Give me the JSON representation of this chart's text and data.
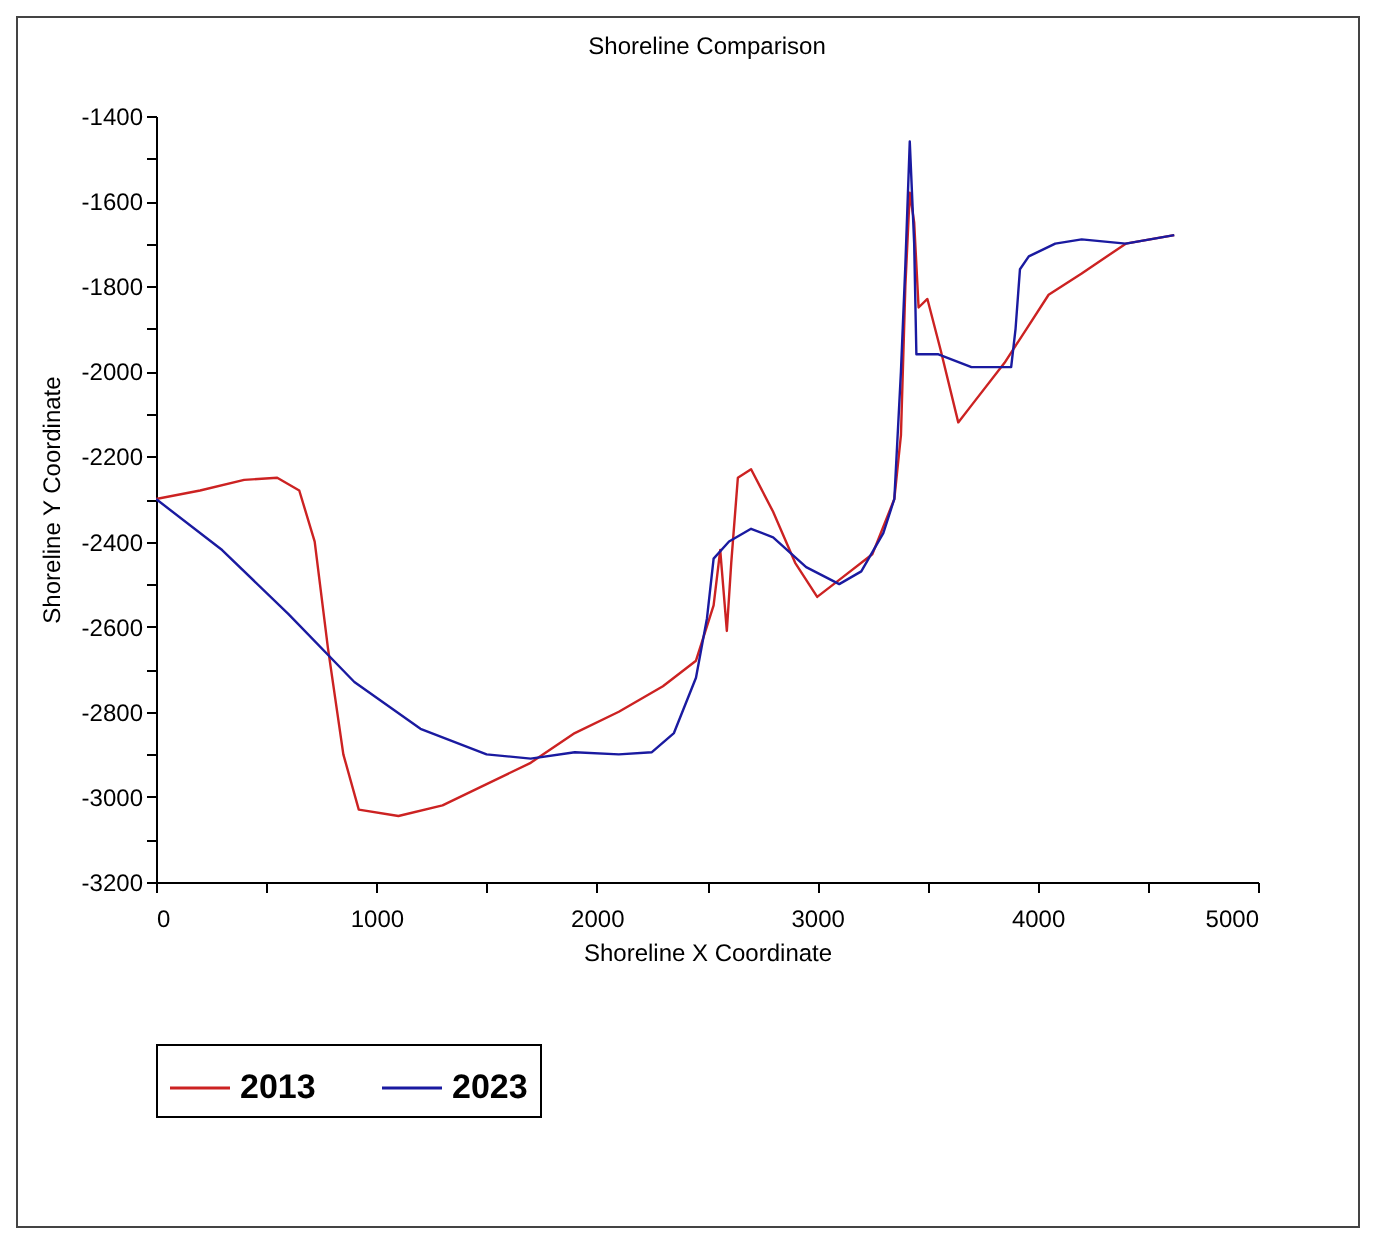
{
  "chart_data": {
    "type": "line",
    "title": "Shoreline Comparison",
    "xlabel": "Shoreline X Coordinate",
    "ylabel": "Shoreline Y Coordinate",
    "xlim": [
      0,
      5000
    ],
    "ylim": [
      -3200,
      -1400
    ],
    "xticks": [
      0,
      {
        "value": 500,
        "label": null
      },
      1000,
      {
        "value": 1500,
        "label": null
      },
      2000,
      {
        "value": 2500,
        "label": null
      },
      3000,
      {
        "value": 3500,
        "label": null
      },
      4000,
      {
        "value": 4500,
        "label": null
      },
      5000
    ],
    "yticks": [
      -3200,
      {
        "value": -3100,
        "label": null
      },
      -3000,
      {
        "value": -2900,
        "label": null
      },
      -2800,
      {
        "value": -2700,
        "label": null
      },
      -2600,
      {
        "value": -2500,
        "label": null
      },
      -2400,
      {
        "value": -2300,
        "label": null
      },
      -2200,
      {
        "value": -2100,
        "label": null
      },
      -2000,
      {
        "value": -1900,
        "label": null
      },
      -1800,
      {
        "value": -1700,
        "label": null
      },
      -1600,
      {
        "value": -1500,
        "label": null
      },
      -1400
    ],
    "grid": false,
    "legend": "bottom",
    "marker": "none",
    "line_style": "solid",
    "series": [
      {
        "name": "2013",
        "color": "#cc2222",
        "x": [
          0,
          200,
          400,
          550,
          650,
          720,
          780,
          850,
          920,
          1100,
          1300,
          1500,
          1700,
          1900,
          2100,
          2300,
          2450,
          2530,
          2560,
          2590,
          2610,
          2640,
          2700,
          2800,
          2900,
          3000,
          3100,
          3250,
          3350,
          3380,
          3400,
          3420,
          3440,
          3460,
          3500,
          3560,
          3640,
          3700,
          3850,
          3950,
          4050,
          4200,
          4400,
          4620
        ],
        "values": [
          -2300,
          -2280,
          -2255,
          -2250,
          -2280,
          -2400,
          -2650,
          -2900,
          -3030,
          -3045,
          -3020,
          -2970,
          -2920,
          -2850,
          -2800,
          -2740,
          -2680,
          -2550,
          -2420,
          -2610,
          -2450,
          -2250,
          -2230,
          -2330,
          -2450,
          -2530,
          -2490,
          -2430,
          -2300,
          -2150,
          -1800,
          -1580,
          -1650,
          -1850,
          -1830,
          -1950,
          -2120,
          -2080,
          -1980,
          -1900,
          -1820,
          -1770,
          -1700,
          -1680
        ]
      },
      {
        "name": "2023",
        "color": "#1a1aa0",
        "x": [
          0,
          300,
          600,
          900,
          1200,
          1500,
          1700,
          1900,
          2100,
          2250,
          2350,
          2450,
          2500,
          2530,
          2600,
          2700,
          2800,
          2950,
          3100,
          3200,
          3300,
          3350,
          3380,
          3400,
          3420,
          3440,
          3450,
          3550,
          3700,
          3880,
          3900,
          3920,
          3960,
          4080,
          4200,
          4400,
          4620
        ],
        "values": [
          -2300,
          -2420,
          -2570,
          -2730,
          -2840,
          -2900,
          -2910,
          -2895,
          -2900,
          -2895,
          -2850,
          -2720,
          -2580,
          -2440,
          -2400,
          -2370,
          -2390,
          -2460,
          -2500,
          -2470,
          -2380,
          -2300,
          -2000,
          -1750,
          -1460,
          -1700,
          -1960,
          -1960,
          -1990,
          -1990,
          -1900,
          -1760,
          -1730,
          -1700,
          -1690,
          -1700,
          -1680
        ]
      }
    ]
  }
}
